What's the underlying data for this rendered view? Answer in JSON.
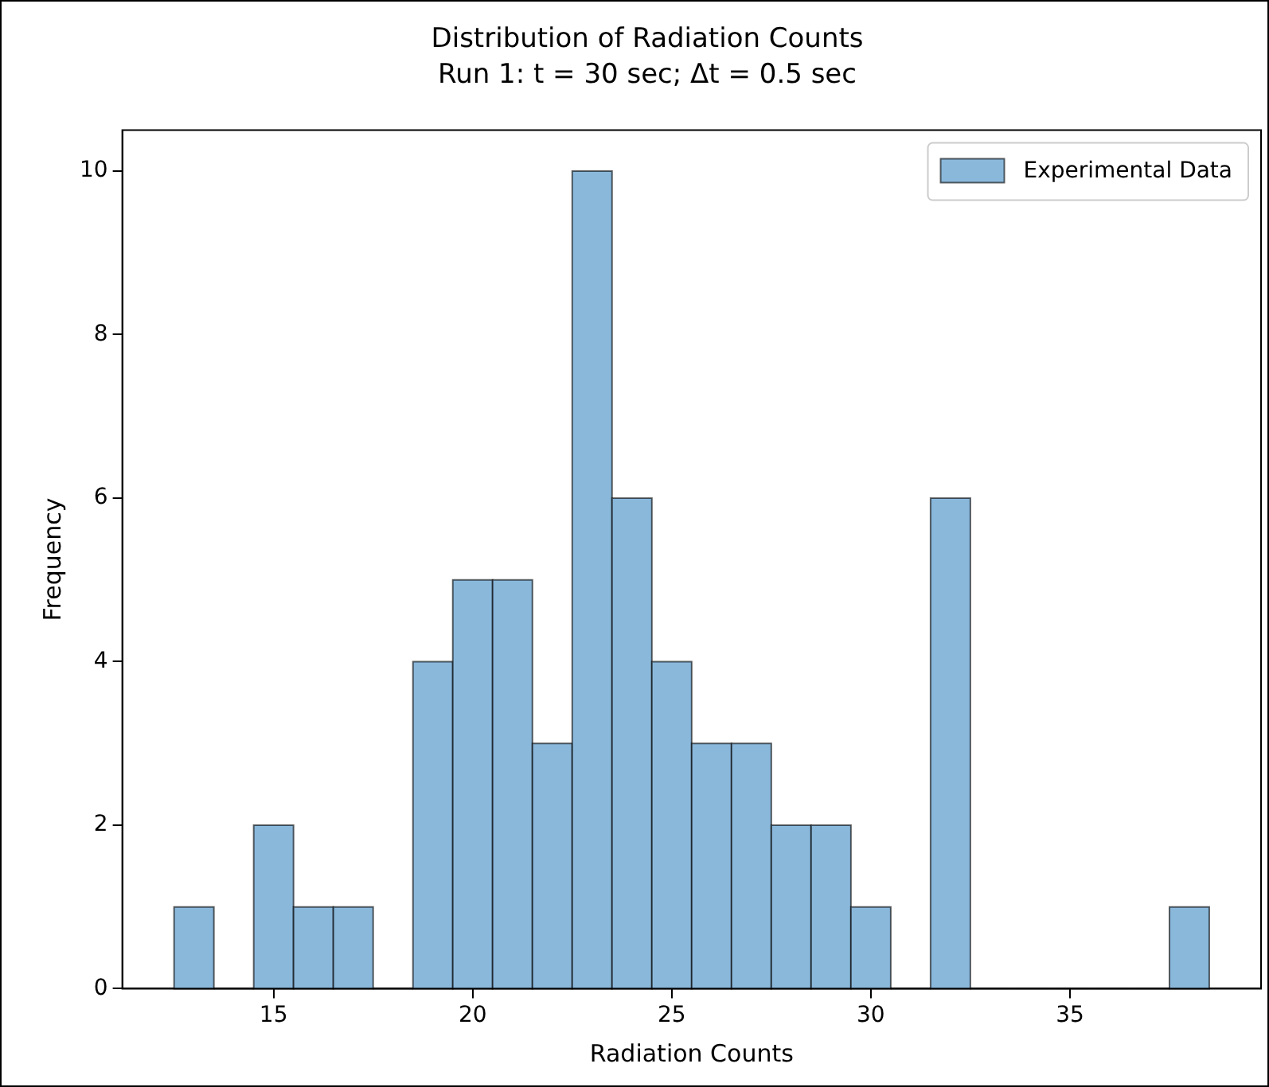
{
  "chart_data": {
    "type": "histogram",
    "title": "Distribution of Radiation Counts",
    "subtitle": "Run 1: t = 30 sec; Δt = 0.5 sec",
    "xlabel": "Radiation Counts",
    "ylabel": "Frequency",
    "bins": [
      12.5,
      13.5,
      14.5,
      15.5,
      16.5,
      17.5,
      18.5,
      19.5,
      20.5,
      21.5,
      22.5,
      23.5,
      24.5,
      25.5,
      26.5,
      27.5,
      28.5,
      29.5,
      30.5,
      31.5,
      32.5,
      33.5,
      34.5,
      35.5,
      36.5,
      37.5,
      38.5
    ],
    "series": [
      {
        "name": "Experimental Data",
        "color": "#8ab8db",
        "values": [
          1,
          0,
          2,
          1,
          1,
          0,
          4,
          5,
          5,
          3,
          10,
          6,
          4,
          3,
          3,
          2,
          2,
          1,
          0,
          6,
          0,
          0,
          0,
          0,
          0,
          1
        ]
      }
    ],
    "xlim": [
      11.2,
      39.8
    ],
    "xticks": [
      15,
      20,
      25,
      30,
      35
    ],
    "ylim": [
      0,
      10.5
    ],
    "yticks": [
      0,
      2,
      4,
      6,
      8,
      10
    ],
    "grid": false,
    "legend": "top right"
  }
}
